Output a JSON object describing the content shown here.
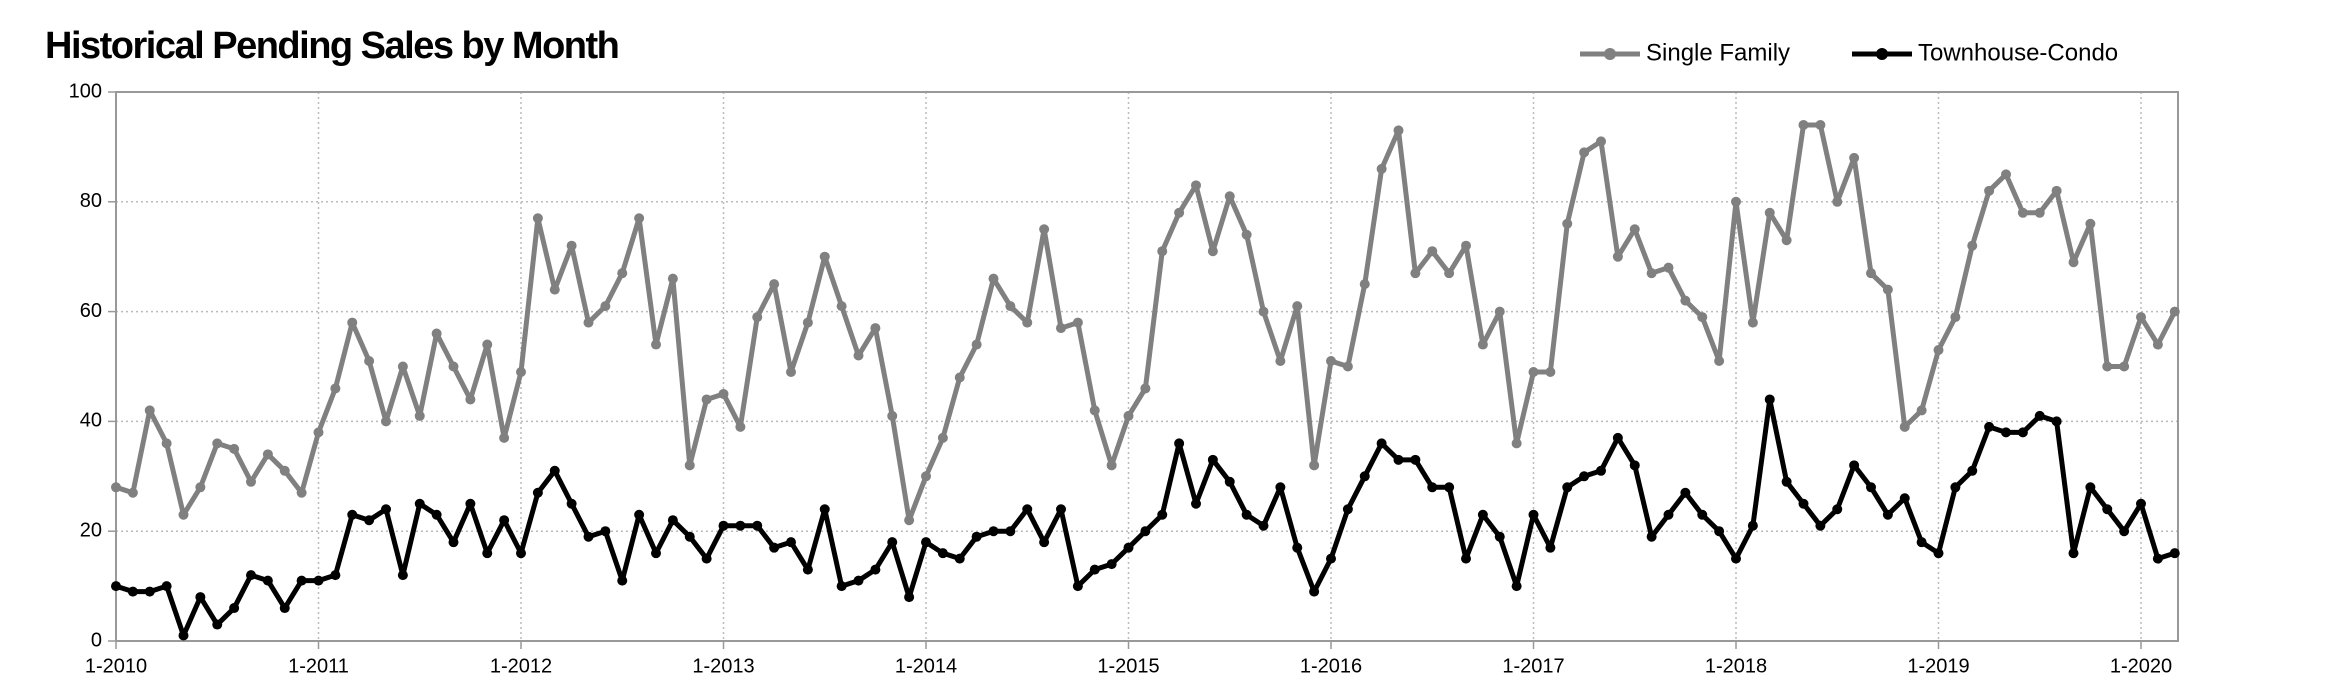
{
  "chart_data": {
    "type": "line",
    "title": "Historical Pending Sales by Month",
    "categories": [
      "1-2010",
      null,
      null,
      null,
      null,
      null,
      null,
      null,
      null,
      null,
      null,
      null,
      "1-2011",
      null,
      null,
      null,
      null,
      null,
      null,
      null,
      null,
      null,
      null,
      null,
      "1-2012",
      null,
      null,
      null,
      null,
      null,
      null,
      null,
      null,
      null,
      null,
      null,
      "1-2013",
      null,
      null,
      null,
      null,
      null,
      null,
      null,
      null,
      null,
      null,
      null,
      "1-2014",
      null,
      null,
      null,
      null,
      null,
      null,
      null,
      null,
      null,
      null,
      null,
      "1-2015",
      null,
      null,
      null,
      null,
      null,
      null,
      null,
      null,
      null,
      null,
      null,
      "1-2016",
      null,
      null,
      null,
      null,
      null,
      null,
      null,
      null,
      null,
      null,
      null,
      "1-2017",
      null,
      null,
      null,
      null,
      null,
      null,
      null,
      null,
      null,
      null,
      null,
      "1-2018",
      null,
      null,
      null,
      null,
      null,
      null,
      null,
      null,
      null,
      null,
      null,
      "1-2019",
      null,
      null,
      null,
      null,
      null,
      null,
      null,
      null,
      null,
      null,
      null,
      "1-2020",
      null,
      null
    ],
    "series": [
      {
        "name": "Single Family",
        "color": "#808080",
        "values": [
          28,
          27,
          42,
          36,
          23,
          28,
          36,
          35,
          29,
          34,
          31,
          27,
          38,
          46,
          58,
          51,
          40,
          50,
          41,
          56,
          50,
          44,
          54,
          37,
          49,
          77,
          64,
          72,
          58,
          61,
          67,
          77,
          54,
          66,
          32,
          44,
          45,
          39,
          59,
          65,
          49,
          58,
          70,
          61,
          52,
          57,
          41,
          22,
          30,
          37,
          48,
          54,
          66,
          61,
          58,
          75,
          57,
          58,
          42,
          32,
          41,
          46,
          71,
          78,
          83,
          71,
          81,
          74,
          60,
          51,
          61,
          32,
          51,
          50,
          65,
          86,
          93,
          67,
          71,
          67,
          72,
          54,
          60,
          36,
          49,
          49,
          76,
          89,
          91,
          70,
          75,
          67,
          68,
          62,
          59,
          51,
          80,
          58,
          78,
          73,
          94,
          94,
          80,
          88,
          67,
          64,
          39,
          42,
          53,
          59,
          72,
          82,
          85,
          78,
          78,
          82,
          69,
          76,
          50,
          50,
          59,
          54,
          60
        ]
      },
      {
        "name": "Townhouse-Condo",
        "color": "#000000",
        "values": [
          10,
          9,
          9,
          10,
          1,
          8,
          3,
          6,
          12,
          11,
          6,
          11,
          11,
          12,
          23,
          22,
          24,
          12,
          25,
          23,
          18,
          25,
          16,
          22,
          16,
          27,
          31,
          25,
          19,
          20,
          11,
          23,
          16,
          22,
          19,
          15,
          21,
          21,
          21,
          17,
          18,
          13,
          24,
          10,
          11,
          13,
          18,
          8,
          18,
          16,
          15,
          19,
          20,
          20,
          24,
          18,
          24,
          10,
          13,
          14,
          17,
          20,
          23,
          36,
          25,
          33,
          29,
          23,
          21,
          28,
          17,
          9,
          15,
          24,
          30,
          36,
          33,
          33,
          28,
          28,
          15,
          23,
          19,
          10,
          23,
          17,
          28,
          30,
          31,
          37,
          32,
          19,
          23,
          27,
          23,
          20,
          15,
          21,
          44,
          29,
          25,
          21,
          24,
          32,
          28,
          23,
          26,
          18,
          16,
          28,
          31,
          39,
          38,
          38,
          41,
          40,
          16,
          28,
          24,
          20,
          25,
          15,
          16
        ]
      }
    ],
    "ylim": [
      0,
      100
    ],
    "yticks": [
      0,
      20,
      40,
      60,
      80,
      100
    ],
    "grid": true,
    "legend": "top-right"
  }
}
